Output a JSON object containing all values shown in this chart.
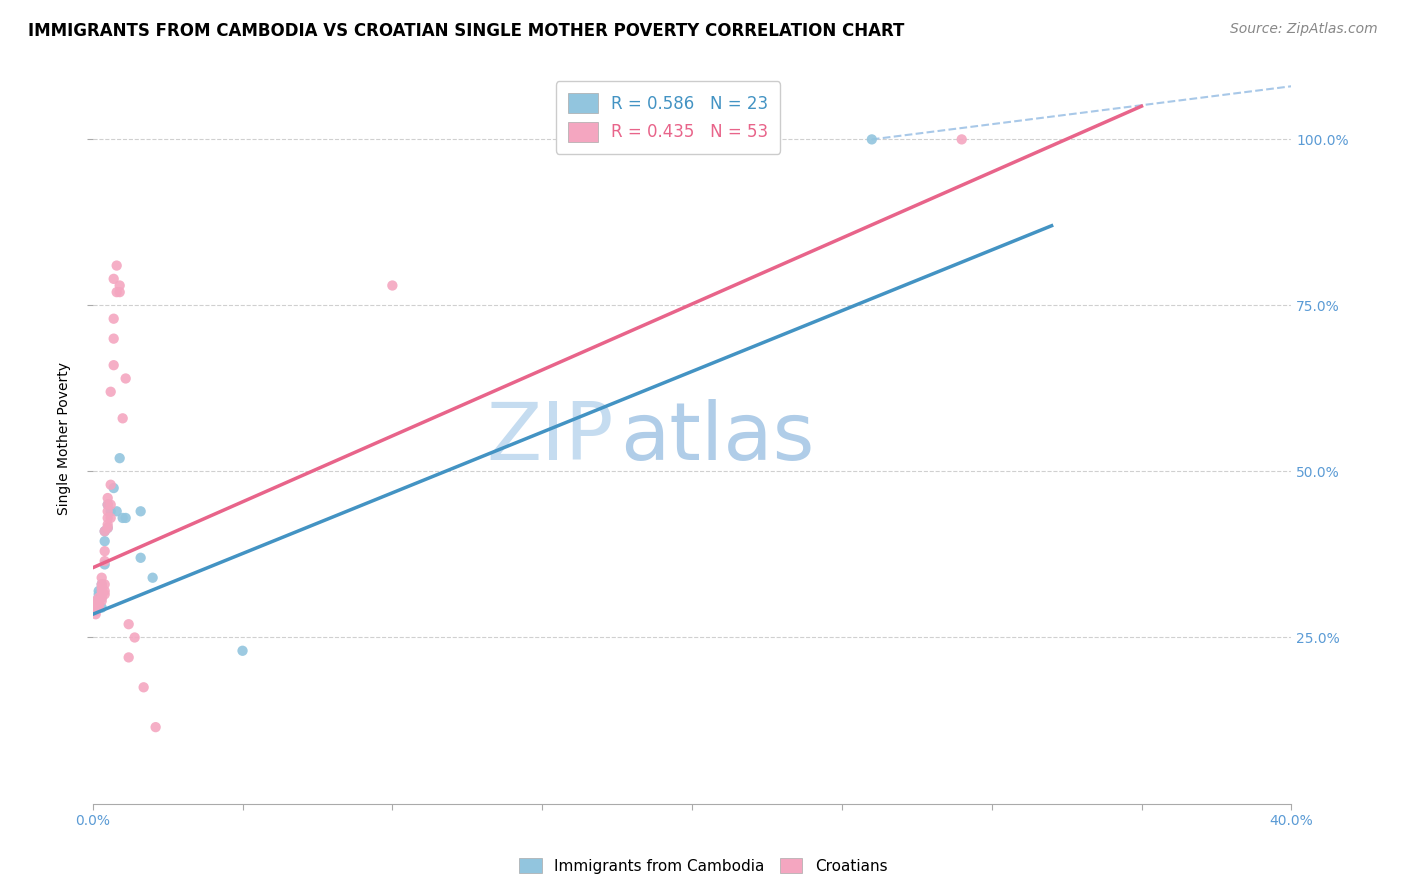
{
  "title": "IMMIGRANTS FROM CAMBODIA VS CROATIAN SINGLE MOTHER POVERTY CORRELATION CHART",
  "source": "Source: ZipAtlas.com",
  "ylabel": "Single Mother Poverty",
  "legend_blue_R": "R = 0.586",
  "legend_blue_N": "N = 23",
  "legend_pink_R": "R = 0.435",
  "legend_pink_N": "N = 53",
  "blue_color": "#92c5de",
  "pink_color": "#f4a6c0",
  "blue_line_color": "#4393c3",
  "pink_line_color": "#e8648a",
  "dashed_line_color": "#a8c8e8",
  "watermark_color": "#daeaf7",
  "blue_scatter_x": [
    0.001,
    0.002,
    0.002,
    0.002,
    0.003,
    0.003,
    0.003,
    0.004,
    0.004,
    0.004,
    0.005,
    0.005,
    0.006,
    0.007,
    0.008,
    0.009,
    0.01,
    0.011,
    0.016,
    0.016,
    0.02,
    0.05,
    0.26
  ],
  "blue_scatter_y": [
    0.3,
    0.31,
    0.315,
    0.32,
    0.295,
    0.31,
    0.33,
    0.36,
    0.395,
    0.41,
    0.415,
    0.45,
    0.44,
    0.475,
    0.44,
    0.52,
    0.43,
    0.43,
    0.37,
    0.44,
    0.34,
    0.23,
    1.0
  ],
  "pink_scatter_x": [
    0.001,
    0.001,
    0.001,
    0.001,
    0.001,
    0.001,
    0.001,
    0.002,
    0.002,
    0.002,
    0.002,
    0.002,
    0.002,
    0.003,
    0.003,
    0.003,
    0.003,
    0.003,
    0.003,
    0.003,
    0.004,
    0.004,
    0.004,
    0.004,
    0.004,
    0.004,
    0.005,
    0.005,
    0.005,
    0.005,
    0.005,
    0.005,
    0.006,
    0.006,
    0.006,
    0.006,
    0.007,
    0.007,
    0.007,
    0.007,
    0.008,
    0.008,
    0.009,
    0.009,
    0.01,
    0.011,
    0.012,
    0.012,
    0.014,
    0.017,
    0.021,
    0.1,
    0.29
  ],
  "pink_scatter_y": [
    0.295,
    0.3,
    0.305,
    0.295,
    0.295,
    0.29,
    0.285,
    0.305,
    0.3,
    0.31,
    0.305,
    0.295,
    0.295,
    0.33,
    0.34,
    0.325,
    0.32,
    0.315,
    0.31,
    0.305,
    0.38,
    0.41,
    0.365,
    0.33,
    0.32,
    0.315,
    0.44,
    0.43,
    0.45,
    0.42,
    0.415,
    0.46,
    0.48,
    0.45,
    0.43,
    0.62,
    0.7,
    0.66,
    0.73,
    0.79,
    0.77,
    0.81,
    0.78,
    0.77,
    0.58,
    0.64,
    0.27,
    0.22,
    0.25,
    0.175,
    0.115,
    0.78,
    1.0
  ],
  "xlim_data": [
    0.0,
    0.4
  ],
  "ylim_data": [
    0.0,
    1.1
  ],
  "blue_line_x0": 0.0,
  "blue_line_y0": 0.285,
  "blue_line_x1": 0.32,
  "blue_line_y1": 0.87,
  "pink_line_x0": 0.0,
  "pink_line_y0": 0.355,
  "pink_line_x1": 0.35,
  "pink_line_y1": 1.05,
  "dash_line_x0": 0.26,
  "dash_line_y0": 1.0,
  "dash_line_x1": 0.4,
  "dash_line_y1": 1.08,
  "title_fontsize": 12,
  "axis_label_fontsize": 10,
  "tick_fontsize": 10,
  "legend_fontsize": 12,
  "source_fontsize": 10,
  "watermark_fontsize": 58
}
